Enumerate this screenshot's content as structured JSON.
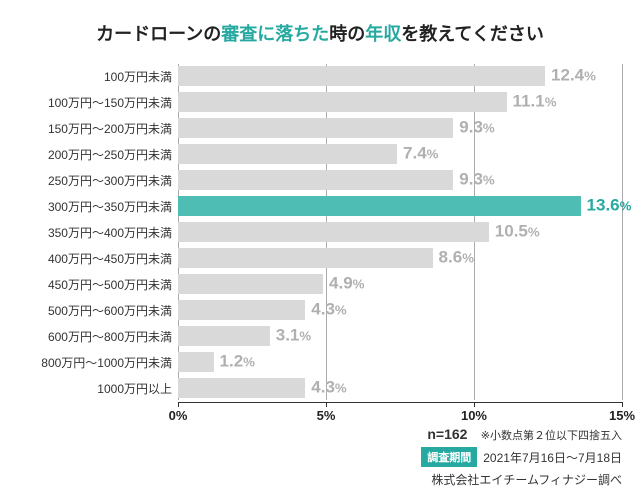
{
  "title": {
    "parts": [
      {
        "text": "カードローンの",
        "color": "#222222"
      },
      {
        "text": "審査に落ちた",
        "color": "#25a9a0"
      },
      {
        "text": "時の",
        "color": "#222222"
      },
      {
        "text": "年収",
        "color": "#25a9a0"
      },
      {
        "text": "を教えてください",
        "color": "#222222"
      }
    ],
    "fontsize": 18
  },
  "chart": {
    "type": "bar-horizontal",
    "xlim": [
      0,
      15
    ],
    "xticks": [
      0,
      5,
      10,
      15
    ],
    "xtick_labels": [
      "0%",
      "5%",
      "10%",
      "15%"
    ],
    "bar_default_color": "#d9d9d9",
    "bar_highlight_color": "#4ebdb4",
    "value_label_default_color": "#b0b0b0",
    "value_label_highlight_color": "#25a9a0",
    "value_label_fontsize": 17,
    "category_fontsize": 12,
    "grid_color": "#aaaaaa",
    "axis_color": "#333333",
    "categories": [
      {
        "label": "100万円未満",
        "value": 12.4,
        "highlight": false
      },
      {
        "label": "100万円～150万円未満",
        "value": 11.1,
        "highlight": false
      },
      {
        "label": "150万円～200万円未満",
        "value": 9.3,
        "highlight": false
      },
      {
        "label": "200万円～250万円未満",
        "value": 7.4,
        "highlight": false
      },
      {
        "label": "250万円～300万円未満",
        "value": 9.3,
        "highlight": false
      },
      {
        "label": "300万円～350万円未満",
        "value": 13.6,
        "highlight": true
      },
      {
        "label": "350万円～400万円未満",
        "value": 10.5,
        "highlight": false
      },
      {
        "label": "400万円～450万円未満",
        "value": 8.6,
        "highlight": false
      },
      {
        "label": "450万円～500万円未満",
        "value": 4.9,
        "highlight": false
      },
      {
        "label": "500万円～600万円未満",
        "value": 4.3,
        "highlight": false
      },
      {
        "label": "600万円～800万円未満",
        "value": 3.1,
        "highlight": false
      },
      {
        "label": "800万円～1000万円未満",
        "value": 1.2,
        "highlight": false
      },
      {
        "label": "1000万円以上",
        "value": 4.3,
        "highlight": false
      }
    ]
  },
  "footer": {
    "n_label": "n=162",
    "note": "※小数点第２位以下四捨五入",
    "period_badge": "調査期間",
    "period_text": "2021年7月16日～7月18日",
    "source": "株式会社エイチームフィナジー調べ",
    "badge_bg": "#25a9a0"
  }
}
